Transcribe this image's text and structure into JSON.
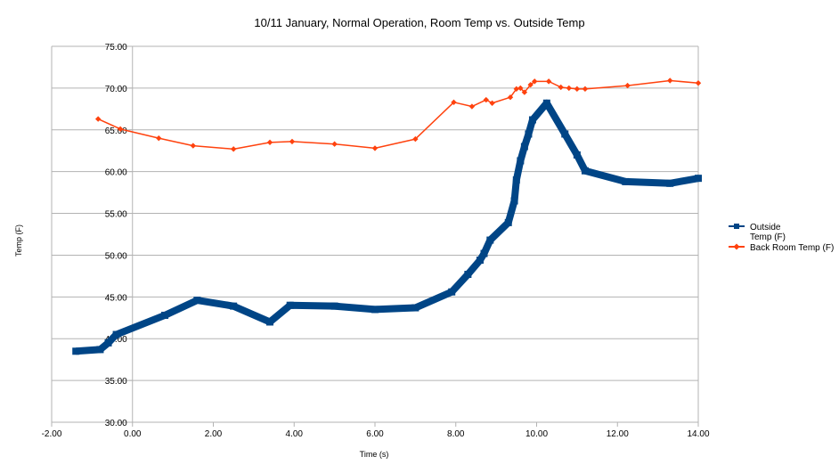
{
  "chart_data": {
    "type": "line",
    "title": "10/11 January, Normal Operation, Room Temp vs. Outside Temp",
    "xlabel": "Time (s)",
    "ylabel": "Temp (F)",
    "xlim": [
      -2,
      14
    ],
    "ylim": [
      30,
      75
    ],
    "x_ticks": [
      -2,
      0,
      2,
      4,
      6,
      8,
      10,
      12,
      14
    ],
    "x_tick_labels": [
      "-2.00",
      "0.00",
      "2.00",
      "4.00",
      "6.00",
      "8.00",
      "10.00",
      "12.00",
      "14.00"
    ],
    "y_ticks": [
      30,
      35,
      40,
      45,
      50,
      55,
      60,
      65,
      70,
      75
    ],
    "y_tick_labels": [
      "30.00",
      "35.00",
      "40.00",
      "45.00",
      "50.00",
      "55.00",
      "60.00",
      "65.00",
      "70.00",
      "75.00"
    ],
    "grid": "horizontal",
    "legend_position": "right",
    "series": [
      {
        "name": "Outside\nTemp (F)",
        "legend_lines": [
          "Outside",
          "Temp (F)"
        ],
        "color": "#004586",
        "marker": "square",
        "x": [
          -1.4,
          -0.8,
          -0.6,
          -0.4,
          0.8,
          1.6,
          2.5,
          3.4,
          3.9,
          5.0,
          6.0,
          7.0,
          7.9,
          8.3,
          8.6,
          8.7,
          8.85,
          9.3,
          9.45,
          9.5,
          9.6,
          9.7,
          9.8,
          9.9,
          10.25,
          10.7,
          11.0,
          11.2,
          12.2,
          13.3,
          14.0
        ],
        "y": [
          38.5,
          38.7,
          39.5,
          40.5,
          42.8,
          44.6,
          43.9,
          42.0,
          44.0,
          43.9,
          43.5,
          43.7,
          45.6,
          47.7,
          49.4,
          50.2,
          51.8,
          53.9,
          56.5,
          59.0,
          61.3,
          63.0,
          64.5,
          66.2,
          68.2,
          64.5,
          62.0,
          60.1,
          58.8,
          58.6,
          59.2
        ]
      },
      {
        "name": "Back Room Temp (F)",
        "legend_lines": [
          "Back Room Temp (F)"
        ],
        "color": "#ff420e",
        "marker": "diamond",
        "x": [
          -0.85,
          -0.3,
          0.65,
          1.5,
          2.5,
          3.4,
          3.95,
          5.0,
          6.0,
          7.0,
          7.95,
          8.4,
          8.75,
          8.9,
          9.35,
          9.5,
          9.6,
          9.7,
          9.85,
          9.95,
          10.3,
          10.6,
          10.8,
          11.0,
          11.2,
          12.25,
          13.3,
          14.0
        ],
        "y": [
          66.3,
          65.1,
          64.0,
          63.1,
          62.7,
          63.5,
          63.6,
          63.3,
          62.8,
          63.9,
          68.3,
          67.8,
          68.6,
          68.2,
          68.9,
          69.9,
          70.0,
          69.5,
          70.4,
          70.8,
          70.8,
          70.1,
          70.0,
          69.9,
          69.9,
          70.3,
          70.9,
          70.6
        ]
      }
    ]
  }
}
